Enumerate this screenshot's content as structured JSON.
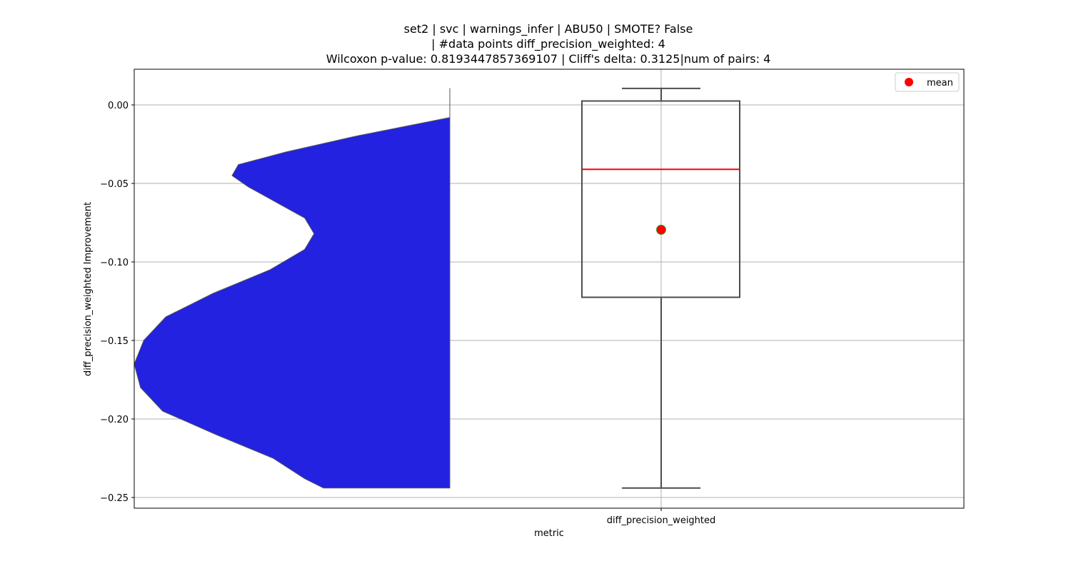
{
  "chart_data": {
    "type": "violin+box",
    "title_lines": [
      "set2 | svc | warnings_infer | ABU50 | SMOTE? False",
      "| #data points diff_precision_weighted: 4",
      "Wilcoxon p-value: 0.8193447857369107 | Cliff's delta: 0.3125|num of pairs: 4"
    ],
    "xlabel": "metric",
    "ylabel": "diff_precision_weighted Improvement",
    "categories": [
      "diff_precision_weighted"
    ],
    "ylim": [
      -0.257,
      0.023
    ],
    "yticks": [
      0.0,
      -0.05,
      -0.1,
      -0.15,
      -0.2,
      -0.25
    ],
    "ytick_labels": [
      "0.00",
      "−0.05",
      "−0.10",
      "−0.15",
      "−0.20",
      "−0.25"
    ],
    "grid": true,
    "legend": {
      "position": "upper right",
      "entries": [
        {
          "label": "mean",
          "color": "#ff0000"
        }
      ]
    },
    "box": {
      "whisker_low": -0.244,
      "q1": -0.1225,
      "median": -0.041,
      "q3": 0.0025,
      "whisker_high": 0.0105,
      "mean": -0.0795,
      "median_color": "#ff0000",
      "mean_color": "#ff0000",
      "mean_edge_color": "#2ca02c",
      "box_color": "#4d4d4d"
    },
    "violin": {
      "fill_color": "#2222e0",
      "edge_color": "#555555",
      "side": "left-half",
      "y_range": [
        -0.244,
        0.0105
      ],
      "profile": [
        {
          "y": 0.0105,
          "w": 0.0
        },
        {
          "y": -0.008,
          "w": 0.0
        },
        {
          "y": -0.02,
          "w": 0.3
        },
        {
          "y": -0.03,
          "w": 0.52
        },
        {
          "y": -0.038,
          "w": 0.67
        },
        {
          "y": -0.045,
          "w": 0.69
        },
        {
          "y": -0.052,
          "w": 0.64
        },
        {
          "y": -0.062,
          "w": 0.55
        },
        {
          "y": -0.072,
          "w": 0.46
        },
        {
          "y": -0.082,
          "w": 0.43
        },
        {
          "y": -0.092,
          "w": 0.46
        },
        {
          "y": -0.105,
          "w": 0.57
        },
        {
          "y": -0.12,
          "w": 0.75
        },
        {
          "y": -0.135,
          "w": 0.9
        },
        {
          "y": -0.15,
          "w": 0.97
        },
        {
          "y": -0.165,
          "w": 1.0
        },
        {
          "y": -0.18,
          "w": 0.98
        },
        {
          "y": -0.195,
          "w": 0.91
        },
        {
          "y": -0.21,
          "w": 0.74
        },
        {
          "y": -0.225,
          "w": 0.56
        },
        {
          "y": -0.238,
          "w": 0.46
        },
        {
          "y": -0.244,
          "w": 0.4
        }
      ]
    }
  }
}
